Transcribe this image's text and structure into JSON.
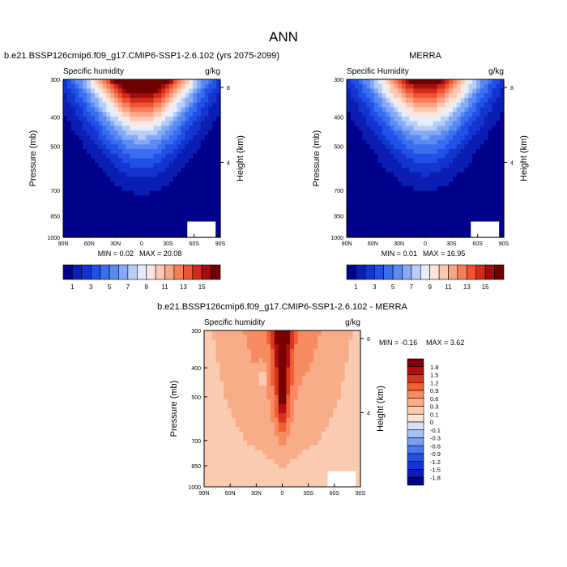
{
  "figure_title": "ANN",
  "chart_data": [
    {
      "type": "contour",
      "title": "b.e21.BSSP126cmip6.f09_g17.CMIP6-SSP1-2.6.102 (yrs 2075-2099)",
      "left_label": "Specific humidity",
      "right_label": "g/kg",
      "xlabel": "",
      "ylabel": "Pressure (mb)",
      "y2label": "Height (km)",
      "x_ticks": [
        "90N",
        "60N",
        "30N",
        "0",
        "30S",
        "60S",
        "90S"
      ],
      "y_ticks": [
        "300",
        "400",
        "500",
        "700",
        "850",
        "1000"
      ],
      "y2_ticks": [
        "8",
        "4"
      ],
      "min_text": "MIN =  0.02",
      "max_text": "MAX =  20.08",
      "colorbar_orientation": "horizontal",
      "colorbar_labels": [
        "1",
        "3",
        "5",
        "7",
        "9",
        "11",
        "13",
        "15"
      ],
      "levels": [
        1,
        2,
        3,
        4,
        5,
        6,
        7,
        8,
        9,
        10,
        11,
        12,
        13,
        14,
        15,
        16
      ],
      "min": 0.02,
      "max": 20.08,
      "colors": [
        "#00008B",
        "#0A1EB4",
        "#1434D2",
        "#2050E6",
        "#3A6EF0",
        "#5A8AF2",
        "#86AAF6",
        "#B8CEF9",
        "#E6EEFC",
        "#FCE6DC",
        "#FBC9B2",
        "#F9A686",
        "#F67E58",
        "#EE5334",
        "#D42A1A",
        "#A00E0E",
        "#6E0000"
      ]
    },
    {
      "type": "contour",
      "title": "MERRA",
      "left_label": "Specific Humidity",
      "right_label": "g/kg",
      "xlabel": "",
      "ylabel": "Pressure (mb)",
      "y2label": "Height (km)",
      "x_ticks": [
        "90N",
        "60N",
        "30N",
        "0",
        "30S",
        "60S",
        "90S"
      ],
      "y_ticks": [
        "300",
        "400",
        "500",
        "700",
        "850",
        "1000"
      ],
      "y2_ticks": [
        "8",
        "4"
      ],
      "min_text": "MIN =  0.01",
      "max_text": "MAX =  16.95",
      "colorbar_orientation": "horizontal",
      "colorbar_labels": [
        "1",
        "3",
        "5",
        "7",
        "9",
        "11",
        "13",
        "15"
      ],
      "levels": [
        1,
        2,
        3,
        4,
        5,
        6,
        7,
        8,
        9,
        10,
        11,
        12,
        13,
        14,
        15,
        16
      ],
      "min": 0.01,
      "max": 16.95,
      "colors": [
        "#00008B",
        "#0A1EB4",
        "#1434D2",
        "#2050E6",
        "#3A6EF0",
        "#5A8AF2",
        "#86AAF6",
        "#B8CEF9",
        "#E6EEFC",
        "#FCE6DC",
        "#FBC9B2",
        "#F9A686",
        "#F67E58",
        "#EE5334",
        "#D42A1A",
        "#A00E0E",
        "#6E0000"
      ]
    },
    {
      "type": "contour",
      "title": "b.e21.BSSP126cmip6.f09_g17.CMIP6-SSP1-2.6.102 - MERRA",
      "left_label": "Specific humidity",
      "right_label": "g/kg",
      "xlabel": "",
      "ylabel": "Pressure (mb)",
      "y2label": "Height (km)",
      "x_ticks": [
        "90N",
        "60N",
        "30N",
        "0",
        "30S",
        "60S",
        "90S"
      ],
      "y_ticks": [
        "300",
        "400",
        "500",
        "700",
        "850",
        "1000"
      ],
      "y2_ticks": [
        "8",
        "4"
      ],
      "min_text": "MIN = -0.16",
      "max_text": "MAX =   3.62",
      "colorbar_orientation": "vertical",
      "colorbar_labels": [
        "1.8",
        "1.5",
        "1.2",
        "0.9",
        "0.6",
        "0.3",
        "0.1",
        "0",
        "-0.1",
        "-0.3",
        "-0.6",
        "-0.9",
        "-1.2",
        "-1.5",
        "-1.8"
      ],
      "levels": [
        -1.8,
        -1.5,
        -1.2,
        -0.9,
        -0.6,
        -0.3,
        -0.1,
        0,
        0.1,
        0.3,
        0.6,
        0.9,
        1.2,
        1.5,
        1.8
      ],
      "min": -0.16,
      "max": 3.62,
      "colors": [
        "#00008B",
        "#0A1EB4",
        "#1434D2",
        "#2050E6",
        "#4A78F0",
        "#7A9EF4",
        "#A6C0F8",
        "#D2E2FB",
        "#FDE4D4",
        "#FBCBB0",
        "#F9AC88",
        "#F68A60",
        "#F06038",
        "#D8361E",
        "#B01010",
        "#7A0000"
      ]
    }
  ]
}
